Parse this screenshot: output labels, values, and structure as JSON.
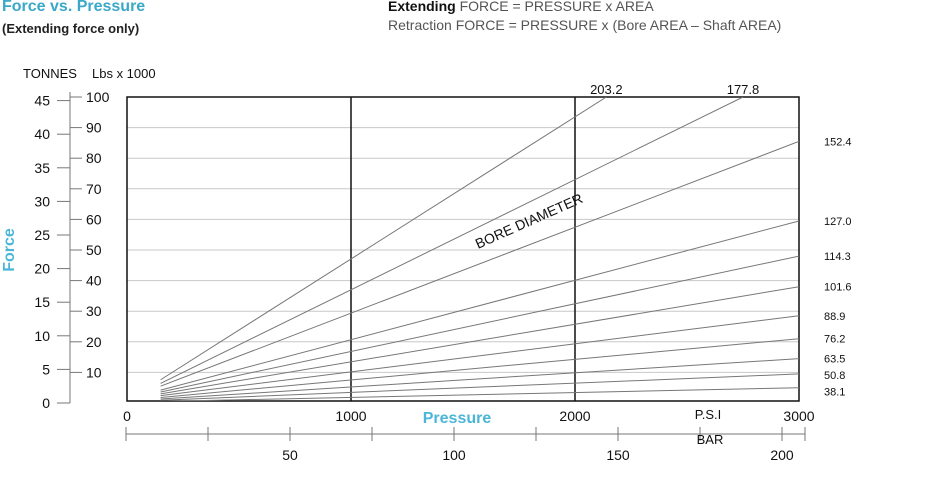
{
  "header": {
    "title": "Force vs. Pressure",
    "subtitle": "(Extending force only)",
    "formula_extending_label": "Extending",
    "formula_extending_rest": "FORCE = PRESSURE x AREA",
    "formula_retraction": "Retraction FORCE = PRESSURE x (Bore AREA – Shaft AREA)"
  },
  "chart_data": {
    "type": "line",
    "title": "Force vs. Pressure",
    "subtitle": "(Extending force only)",
    "ylabel": "Force",
    "xlabel": "Pressure",
    "y_unit_tonnes": "TONNES",
    "y_unit_lbs": "Lbs x 1000",
    "x_unit_psi": "P.S.I",
    "x_unit_bar": "BAR",
    "series_group_label": "BORE DIAMETER",
    "xlim_psi": [
      0,
      3000
    ],
    "ylim_lbs": [
      0,
      100
    ],
    "x_ticks_psi": [
      "0",
      "1000",
      "2000",
      "3000"
    ],
    "x_ticks_bar": [
      "50",
      "100",
      "150",
      "200"
    ],
    "bar_tick_values": [
      50,
      100,
      150,
      200
    ],
    "y_ticks_tonnes": [
      "0",
      "5",
      "10",
      "15",
      "20",
      "25",
      "30",
      "35",
      "40",
      "45"
    ],
    "y_tick_values_tonnes": [
      0,
      5,
      10,
      15,
      20,
      25,
      30,
      35,
      40,
      45
    ],
    "y_ticks_lbs": [
      "10",
      "20",
      "30",
      "40",
      "50",
      "60",
      "70",
      "80",
      "90",
      "100"
    ],
    "y_tick_values_lbs": [
      10,
      20,
      30,
      40,
      50,
      60,
      70,
      80,
      90,
      100
    ],
    "gridlines_psi": [
      1000,
      2000
    ],
    "x_start_psi": 150,
    "series": [
      {
        "name": "203.2",
        "values": [
          {
            "x": 150,
            "y": 7.6
          },
          {
            "x": 2140,
            "y": 100
          }
        ]
      },
      {
        "name": "177.8",
        "values": [
          {
            "x": 150,
            "y": 6.4
          },
          {
            "x": 2750,
            "y": 100
          }
        ]
      },
      {
        "name": "152.4",
        "values": [
          {
            "x": 150,
            "y": 5.5
          },
          {
            "x": 3000,
            "y": 85.5
          }
        ]
      },
      {
        "name": "127.0",
        "values": [
          {
            "x": 150,
            "y": 4.2
          },
          {
            "x": 3000,
            "y": 59.5
          }
        ]
      },
      {
        "name": "114.3",
        "values": [
          {
            "x": 150,
            "y": 3.6
          },
          {
            "x": 3000,
            "y": 48.0
          }
        ]
      },
      {
        "name": "101.6",
        "values": [
          {
            "x": 150,
            "y": 3.0
          },
          {
            "x": 3000,
            "y": 38.0
          }
        ]
      },
      {
        "name": "88.9",
        "values": [
          {
            "x": 150,
            "y": 2.4
          },
          {
            "x": 3000,
            "y": 28.5
          }
        ]
      },
      {
        "name": "76.2",
        "values": [
          {
            "x": 150,
            "y": 1.8
          },
          {
            "x": 3000,
            "y": 21.0
          }
        ]
      },
      {
        "name": "63.5",
        "values": [
          {
            "x": 150,
            "y": 1.3
          },
          {
            "x": 3000,
            "y": 14.5
          }
        ]
      },
      {
        "name": "50.8",
        "values": [
          {
            "x": 150,
            "y": 0.9
          },
          {
            "x": 3000,
            "y": 9.5
          }
        ]
      },
      {
        "name": "38.1",
        "values": [
          {
            "x": 150,
            "y": 0.5
          },
          {
            "x": 3000,
            "y": 5.0
          }
        ]
      }
    ],
    "colors": {
      "title": "#3aa8c9",
      "axis_label": "#4bb6d8",
      "series": "#777777",
      "frame": "#111111",
      "grid": "#c8c8c8"
    }
  }
}
